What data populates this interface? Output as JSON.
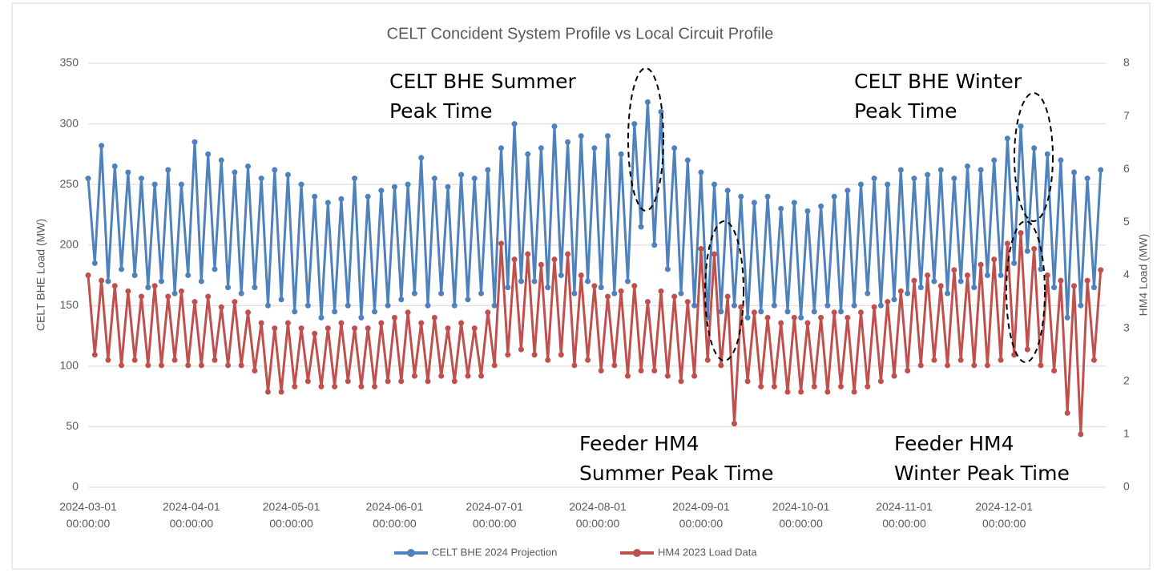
{
  "chart_data": {
    "type": "line",
    "title": "CELT Concident System Profile vs Local Circuit Profile",
    "y_label": "CELT BHE Load (MW)",
    "y2_label": "HM4 Load (MW)",
    "annotations": [
      [
        "CELT BHE Summer",
        "Peak Time"
      ],
      [
        "CELT BHE Winter",
        "Peak Time"
      ],
      [
        "Feeder HM4",
        "Summer Peak Time"
      ],
      [
        "Feeder HM4",
        "Winter Peak Time"
      ]
    ],
    "x": [
      "2024-03-01 00:00:00",
      "2024-03-03 00:00:00",
      "2024-03-05 00:00:00",
      "2024-03-07 00:00:00",
      "2024-03-09 00:00:00",
      "2024-03-11 00:00:00",
      "2024-03-13 00:00:00",
      "2024-03-15 00:00:00",
      "2024-03-17 00:00:00",
      "2024-03-19 00:00:00",
      "2024-03-21 00:00:00",
      "2024-03-23 00:00:00",
      "2024-03-25 00:00:00",
      "2024-03-27 00:00:00",
      "2024-03-29 00:00:00",
      "2024-03-31 00:00:00",
      "2024-04-02 00:00:00",
      "2024-04-04 00:00:00",
      "2024-04-06 00:00:00",
      "2024-04-08 00:00:00",
      "2024-04-10 00:00:00",
      "2024-04-12 00:00:00",
      "2024-04-14 00:00:00",
      "2024-04-16 00:00:00",
      "2024-04-18 00:00:00",
      "2024-04-20 00:00:00",
      "2024-04-22 00:00:00",
      "2024-04-24 00:00:00",
      "2024-04-26 00:00:00",
      "2024-04-28 00:00:00",
      "2024-04-30 00:00:00",
      "2024-05-02 00:00:00",
      "2024-05-04 00:00:00",
      "2024-05-06 00:00:00",
      "2024-05-08 00:00:00",
      "2024-05-10 00:00:00",
      "2024-05-12 00:00:00",
      "2024-05-14 00:00:00",
      "2024-05-16 00:00:00",
      "2024-05-18 00:00:00",
      "2024-05-20 00:00:00",
      "2024-05-22 00:00:00",
      "2024-05-24 00:00:00",
      "2024-05-26 00:00:00",
      "2024-05-28 00:00:00",
      "2024-05-30 00:00:00",
      "2024-06-01 00:00:00",
      "2024-06-03 00:00:00",
      "2024-06-05 00:00:00",
      "2024-06-07 00:00:00",
      "2024-06-09 00:00:00",
      "2024-06-11 00:00:00",
      "2024-06-13 00:00:00",
      "2024-06-15 00:00:00",
      "2024-06-17 00:00:00",
      "2024-06-19 00:00:00",
      "2024-06-21 00:00:00",
      "2024-06-23 00:00:00",
      "2024-06-25 00:00:00",
      "2024-06-27 00:00:00",
      "2024-06-29 00:00:00",
      "2024-07-01 00:00:00",
      "2024-07-03 00:00:00",
      "2024-07-05 00:00:00",
      "2024-07-07 00:00:00",
      "2024-07-09 00:00:00",
      "2024-07-11 00:00:00",
      "2024-07-13 00:00:00",
      "2024-07-15 00:00:00",
      "2024-07-17 00:00:00",
      "2024-07-19 00:00:00",
      "2024-07-21 00:00:00",
      "2024-07-23 00:00:00",
      "2024-07-25 00:00:00",
      "2024-07-27 00:00:00",
      "2024-07-29 00:00:00",
      "2024-07-31 00:00:00",
      "2024-08-02 00:00:00",
      "2024-08-04 00:00:00",
      "2024-08-06 00:00:00",
      "2024-08-08 00:00:00",
      "2024-08-10 00:00:00",
      "2024-08-12 00:00:00",
      "2024-08-14 00:00:00",
      "2024-08-16 00:00:00",
      "2024-08-18 00:00:00",
      "2024-08-20 00:00:00",
      "2024-08-22 00:00:00",
      "2024-08-24 00:00:00",
      "2024-08-26 00:00:00",
      "2024-08-28 00:00:00",
      "2024-08-30 00:00:00",
      "2024-09-01 00:00:00",
      "2024-09-03 00:00:00",
      "2024-09-05 00:00:00",
      "2024-09-07 00:00:00",
      "2024-09-09 00:00:00",
      "2024-09-11 00:00:00",
      "2024-09-13 00:00:00",
      "2024-09-15 00:00:00",
      "2024-09-17 00:00:00",
      "2024-09-19 00:00:00",
      "2024-09-21 00:00:00",
      "2024-09-23 00:00:00",
      "2024-09-25 00:00:00",
      "2024-09-27 00:00:00",
      "2024-09-29 00:00:00",
      "2024-10-01 00:00:00",
      "2024-10-03 00:00:00",
      "2024-10-05 00:00:00",
      "2024-10-07 00:00:00",
      "2024-10-09 00:00:00",
      "2024-10-11 00:00:00",
      "2024-10-13 00:00:00",
      "2024-10-15 00:00:00",
      "2024-10-17 00:00:00",
      "2024-10-19 00:00:00",
      "2024-10-21 00:00:00",
      "2024-10-23 00:00:00",
      "2024-10-25 00:00:00",
      "2024-10-27 00:00:00",
      "2024-10-29 00:00:00",
      "2024-10-31 00:00:00",
      "2024-11-02 00:00:00",
      "2024-11-04 00:00:00",
      "2024-11-06 00:00:00",
      "2024-11-08 00:00:00",
      "2024-11-10 00:00:00",
      "2024-11-12 00:00:00",
      "2024-11-14 00:00:00",
      "2024-11-16 00:00:00",
      "2024-11-18 00:00:00",
      "2024-11-20 00:00:00",
      "2024-11-22 00:00:00",
      "2024-11-24 00:00:00",
      "2024-11-26 00:00:00",
      "2024-11-28 00:00:00",
      "2024-11-30 00:00:00",
      "2024-12-02 00:00:00",
      "2024-12-04 00:00:00",
      "2024-12-06 00:00:00",
      "2024-12-08 00:00:00",
      "2024-12-10 00:00:00",
      "2024-12-12 00:00:00",
      "2024-12-14 00:00:00",
      "2024-12-16 00:00:00",
      "2024-12-18 00:00:00",
      "2024-12-20 00:00:00",
      "2024-12-22 00:00:00",
      "2024-12-24 00:00:00",
      "2024-12-26 00:00:00",
      "2024-12-28 00:00:00",
      "2024-12-30 00:00:00"
    ],
    "series": [
      {
        "name": "CELT BHE 2024 Projection",
        "color": "#4f81bd",
        "values": [
          255,
          185,
          282,
          170,
          265,
          180,
          260,
          175,
          255,
          165,
          250,
          170,
          262,
          160,
          250,
          175,
          285,
          170,
          275,
          180,
          270,
          165,
          260,
          160,
          265,
          165,
          255,
          150,
          262,
          155,
          258,
          145,
          250,
          150,
          240,
          140,
          235,
          145,
          238,
          150,
          255,
          140,
          240,
          145,
          245,
          150,
          248,
          155,
          250,
          160,
          272,
          150,
          255,
          160,
          248,
          150,
          258,
          155,
          255,
          160,
          262,
          150,
          280,
          165,
          300,
          170,
          275,
          170,
          280,
          165,
          298,
          175,
          285,
          160,
          290,
          170,
          280,
          165,
          290,
          160,
          275,
          170,
          300,
          215,
          318,
          200,
          310,
          180,
          280,
          160,
          270,
          150,
          260,
          140,
          250,
          145,
          245,
          150,
          240,
          140,
          235,
          145,
          240,
          150,
          230,
          145,
          235,
          140,
          228,
          145,
          232,
          150,
          240,
          145,
          245,
          150,
          250,
          160,
          255,
          150,
          250,
          155,
          262,
          160,
          255,
          165,
          258,
          170,
          262,
          160,
          255,
          170,
          265,
          165,
          262,
          175,
          270,
          175,
          288,
          185,
          298,
          195,
          280,
          180,
          275,
          165,
          270,
          140,
          260,
          150,
          255,
          165,
          262
        ]
      },
      {
        "name": "HM4 2023 Load Data",
        "color": "#c0504d",
        "axis": "y2",
        "values": [
          4.0,
          2.5,
          3.9,
          2.4,
          3.8,
          2.3,
          3.7,
          2.4,
          3.6,
          2.3,
          3.8,
          2.3,
          3.6,
          2.4,
          3.7,
          2.3,
          3.5,
          2.3,
          3.6,
          2.4,
          3.4,
          2.3,
          3.5,
          2.3,
          3.3,
          2.2,
          3.1,
          1.8,
          3.0,
          1.8,
          3.1,
          1.9,
          3.0,
          2.0,
          2.9,
          1.9,
          3.0,
          1.9,
          3.1,
          2.0,
          3.0,
          1.9,
          3.0,
          1.9,
          3.1,
          2.0,
          3.2,
          2.0,
          3.3,
          2.1,
          3.1,
          2.0,
          3.2,
          2.1,
          3.0,
          2.0,
          3.1,
          2.1,
          3.0,
          2.1,
          3.3,
          2.3,
          4.6,
          2.5,
          4.3,
          2.6,
          4.4,
          2.5,
          4.2,
          2.4,
          4.3,
          2.5,
          4.4,
          2.3,
          4.0,
          2.4,
          3.8,
          2.2,
          3.6,
          2.3,
          3.7,
          2.1,
          3.8,
          2.2,
          3.5,
          2.2,
          3.7,
          2.1,
          3.6,
          2.0,
          3.5,
          2.1,
          4.5,
          2.4,
          4.4,
          2.3,
          3.6,
          1.2,
          3.4,
          2.0,
          3.3,
          1.9,
          3.2,
          1.9,
          3.1,
          1.8,
          3.2,
          1.8,
          3.1,
          1.9,
          3.2,
          1.8,
          3.3,
          1.9,
          3.2,
          1.8,
          3.3,
          1.9,
          3.4,
          2.0,
          3.5,
          2.1,
          3.7,
          2.2,
          3.9,
          2.3,
          4.0,
          2.4,
          3.8,
          2.3,
          4.1,
          2.4,
          4.0,
          2.3,
          4.2,
          2.3,
          4.3,
          2.4,
          4.6,
          2.5,
          4.8,
          2.6,
          4.5,
          2.3,
          4.0,
          2.2,
          3.9,
          1.4,
          3.8,
          1.0,
          3.9,
          2.4,
          4.1
        ]
      }
    ],
    "xlim": [
      "2024-03-01 00:00:00",
      "2024-12-31 12:00:00"
    ],
    "xticks": [
      "2024-03-01 00:00:00",
      "2024-04-01 00:00:00",
      "2024-05-01 00:00:00",
      "2024-06-01 00:00:00",
      "2024-07-01 00:00:00",
      "2024-08-01 00:00:00",
      "2024-09-01 00:00:00",
      "2024-10-01 00:00:00",
      "2024-11-01 00:00:00",
      "2024-12-01 00:00:00"
    ],
    "ylim": [
      0,
      350
    ],
    "yticks": [
      0,
      50,
      100,
      150,
      200,
      250,
      300,
      350
    ],
    "y2lim": [
      0,
      8
    ],
    "y2ticks": [
      0,
      1,
      2,
      3,
      4,
      5,
      6,
      7,
      8
    ],
    "grid": true,
    "legend": "bottom"
  }
}
